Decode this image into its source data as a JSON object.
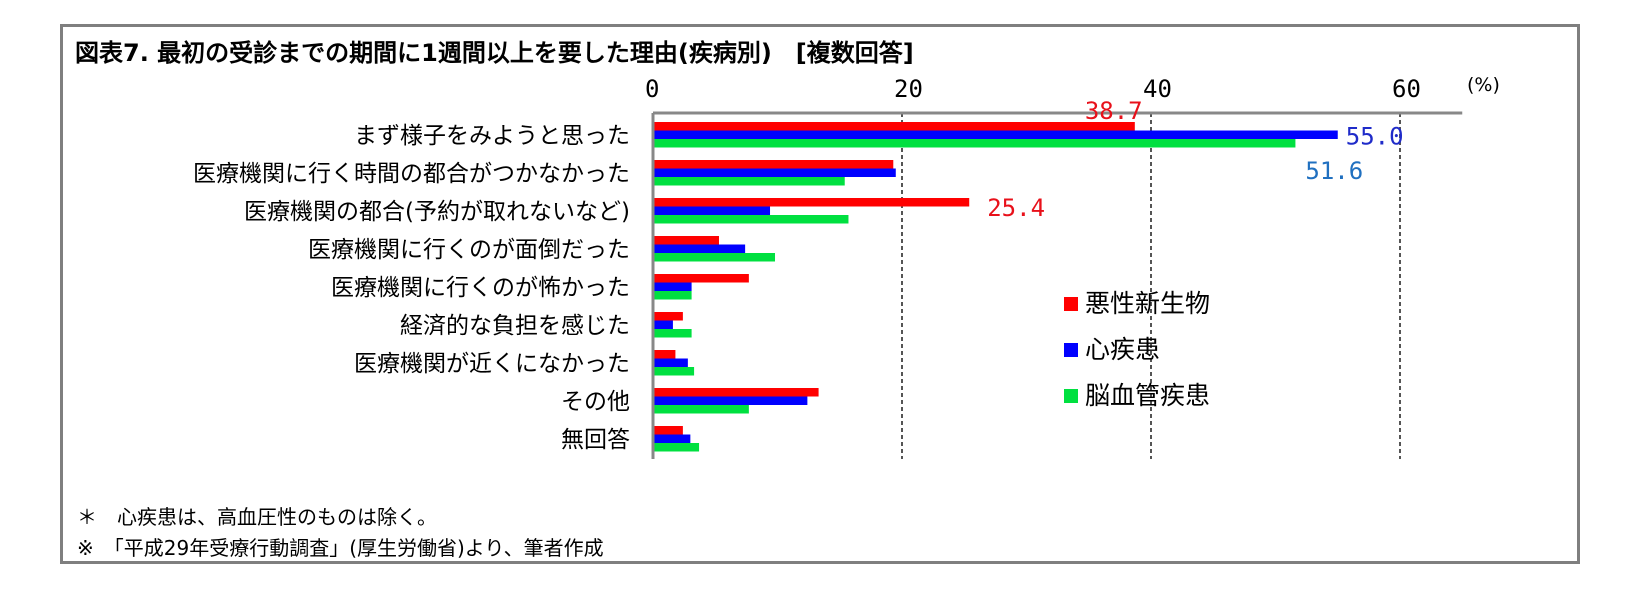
{
  "chart_data": {
    "type": "bar",
    "orientation": "horizontal",
    "title": "図表7. 最初の受診までの期間に1週間以上を要した理由(疾病別)　[複数回答]",
    "unit_label": "(%)",
    "xlim": [
      0,
      65
    ],
    "ticks": [
      0,
      20,
      40,
      60
    ],
    "grid": true,
    "legend_position": "right-middle",
    "categories": [
      "まず様子をみようと思った",
      "医療機関に行く時間の都合がつかなかった",
      "医療機関の都合(予約が取れないなど)",
      "医療機関に行くのが面倒だった",
      "医療機関に行くのが怖かった",
      "経済的な負担を感じた",
      "医療機関が近くになかった",
      "その他",
      "無回答"
    ],
    "series": [
      {
        "name": "悪性新生物",
        "color": "#ff0000",
        "label_color": "#e8101a",
        "values": [
          38.7,
          19.3,
          25.4,
          5.3,
          7.7,
          2.4,
          1.8,
          13.3,
          2.4
        ]
      },
      {
        "name": "心疾患",
        "color": "#0000ff",
        "label_color": "#1f2bc9",
        "values": [
          55.0,
          19.5,
          9.4,
          7.4,
          3.1,
          1.6,
          2.8,
          12.4,
          3.0
        ]
      },
      {
        "name": "脳血管疾患",
        "color": "#00e040",
        "label_color": "#2070c0",
        "values": [
          51.6,
          15.4,
          15.7,
          9.8,
          3.1,
          3.1,
          3.3,
          7.7,
          3.7
        ]
      }
    ],
    "data_labels": [
      {
        "category_index": 0,
        "series_index": 0,
        "text": "38.7"
      },
      {
        "category_index": 0,
        "series_index": 1,
        "text": "55.0"
      },
      {
        "category_index": 0,
        "series_index": 2,
        "text": "51.6"
      },
      {
        "category_index": 2,
        "series_index": 0,
        "text": "25.4"
      }
    ]
  },
  "notes": [
    "＊　心疾患は、高血圧性のものは除く。",
    "※　「平成29年受療行動調査」(厚生労働省)より、筆者作成"
  ]
}
